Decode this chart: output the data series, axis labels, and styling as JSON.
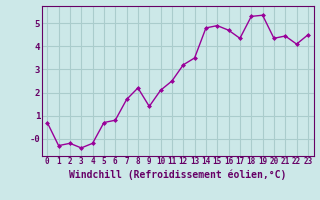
{
  "x": [
    0,
    1,
    2,
    3,
    4,
    5,
    6,
    7,
    8,
    9,
    10,
    11,
    12,
    13,
    14,
    15,
    16,
    17,
    18,
    19,
    20,
    21,
    22,
    23
  ],
  "y": [
    0.7,
    -0.3,
    -0.2,
    -0.4,
    -0.2,
    0.7,
    0.8,
    1.7,
    2.2,
    1.4,
    2.1,
    2.5,
    3.2,
    3.5,
    4.8,
    4.9,
    4.7,
    4.35,
    5.3,
    5.35,
    4.35,
    4.45,
    4.1,
    4.5
  ],
  "line_color": "#990099",
  "marker": "D",
  "marker_size": 2.0,
  "bg_color": "#cce8e8",
  "grid_color": "#aacccc",
  "xlabel": "Windchill (Refroidissement éolien,°C)",
  "xlabel_color": "#660066",
  "tick_color": "#660066",
  "axis_color": "#660066",
  "xlim": [
    -0.5,
    23.5
  ],
  "ylim": [
    -0.75,
    5.75
  ],
  "yticks": [
    0,
    1,
    2,
    3,
    4,
    5
  ],
  "ytick_labels": [
    "-0",
    "1",
    "2",
    "3",
    "4",
    "5"
  ],
  "xticks": [
    0,
    1,
    2,
    3,
    4,
    5,
    6,
    7,
    8,
    9,
    10,
    11,
    12,
    13,
    14,
    15,
    16,
    17,
    18,
    19,
    20,
    21,
    22,
    23
  ],
  "line_width": 1.0,
  "tick_fontsize": 5.5,
  "xlabel_fontsize": 7.0
}
